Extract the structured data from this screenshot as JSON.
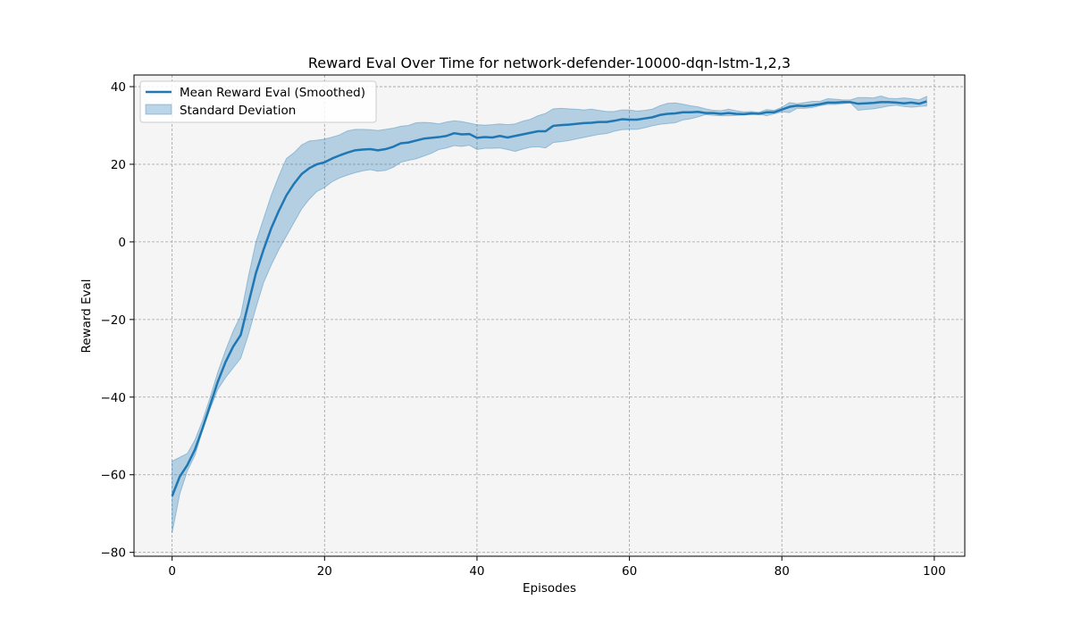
{
  "chart_data": {
    "type": "line",
    "title": "Reward Eval Over Time for network-defender-10000-dqn-lstm-1,2,3",
    "xlabel": "Episodes",
    "ylabel": "Reward Eval",
    "xlim": [
      -5,
      104
    ],
    "ylim": [
      -81,
      43
    ],
    "xticks": [
      0,
      20,
      40,
      60,
      80,
      100
    ],
    "yticks": [
      -80,
      -60,
      -40,
      -20,
      0,
      20,
      40
    ],
    "grid": true,
    "legend_position": "top-left",
    "colors": {
      "line": "#1f77b4",
      "band": "#1f77b4",
      "plot_background": "#f5f5f5",
      "grid": "#a0a0a0"
    },
    "x": [
      0,
      1,
      2,
      3,
      4,
      5,
      6,
      7,
      8,
      9,
      10,
      11,
      12,
      13,
      14,
      15,
      16,
      17,
      18,
      19,
      20,
      21,
      22,
      23,
      24,
      25,
      26,
      27,
      28,
      29,
      30,
      31,
      32,
      33,
      34,
      35,
      36,
      37,
      38,
      39,
      40,
      41,
      42,
      43,
      44,
      45,
      46,
      47,
      48,
      49,
      50,
      51,
      52,
      53,
      54,
      55,
      56,
      57,
      58,
      59,
      60,
      61,
      62,
      63,
      64,
      65,
      66,
      67,
      68,
      69,
      70,
      71,
      72,
      73,
      74,
      75,
      76,
      77,
      78,
      79,
      80,
      81,
      82,
      83,
      84,
      85,
      86,
      87,
      88,
      89,
      90,
      91,
      92,
      93,
      94,
      95,
      96,
      97,
      98,
      99
    ],
    "series": [
      {
        "name": "Mean Reward Eval (Smoothed)",
        "kind": "line",
        "values": [
          -65.5,
          -60.5,
          -57.5,
          -53.5,
          -48,
          -42,
          -36,
          -31,
          -27,
          -24,
          -16,
          -8,
          -2,
          3.5,
          8,
          12,
          15,
          17.5,
          19,
          20,
          20.5,
          21.5,
          22.3,
          23,
          23.6,
          23.8,
          23.9,
          23.6,
          23.9,
          24.5,
          25.4,
          25.6,
          26.1,
          26.6,
          26.8,
          27,
          27.3,
          28,
          27.7,
          27.8,
          26.8,
          27,
          26.9,
          27.3,
          26.9,
          27.3,
          27.7,
          28.1,
          28.5,
          28.5,
          29.9,
          30.1,
          30.2,
          30.4,
          30.6,
          30.7,
          30.9,
          30.9,
          31.2,
          31.6,
          31.5,
          31.5,
          31.8,
          32.1,
          32.7,
          33,
          33.1,
          33.4,
          33.4,
          33.5,
          33.2,
          33.2,
          33,
          33.2,
          33,
          32.9,
          33.1,
          33,
          33.4,
          33.4,
          34.1,
          34.8,
          35.1,
          35,
          35.2,
          35.5,
          35.9,
          35.9,
          36,
          36,
          35.6,
          35.7,
          35.8,
          36,
          36,
          35.9,
          35.7,
          35.9,
          35.6,
          36.2
        ]
      },
      {
        "name": "Standard Deviation",
        "kind": "band",
        "lower": [
          -75,
          -65,
          -59,
          -55,
          -48.5,
          -43,
          -38,
          -35,
          -32.5,
          -30,
          -24,
          -17,
          -10.5,
          -6,
          -2,
          1.5,
          5,
          8.5,
          11,
          13,
          14,
          15.5,
          16.5,
          17.2,
          17.8,
          18.3,
          18.6,
          18.2,
          18.4,
          19.2,
          20.5,
          21,
          21.4,
          22.1,
          22.8,
          23.8,
          24.2,
          24.8,
          24.6,
          24.9,
          23.8,
          24.1,
          24.1,
          24.2,
          23.8,
          23.3,
          23.9,
          24.4,
          24.5,
          24.2,
          25.6,
          25.8,
          26.1,
          26.5,
          26.9,
          27.3,
          27.7,
          27.9,
          28.5,
          28.9,
          29,
          29,
          29.4,
          29.9,
          30.3,
          30.5,
          30.7,
          31.4,
          31.7,
          32.2,
          32.8,
          32.6,
          32.5,
          32.5,
          32.6,
          32.7,
          32.8,
          32.9,
          32.5,
          33,
          33.5,
          33.3,
          34.4,
          34.4,
          34.6,
          35.1,
          35.4,
          35.4,
          35.6,
          35.8,
          33.9,
          34.1,
          34.3,
          34.6,
          35,
          35.2,
          34.9,
          34.7,
          34.9,
          35
        ],
        "upper": [
          -56.5,
          -55.5,
          -54.5,
          -51,
          -46,
          -40,
          -33.5,
          -28,
          -23,
          -19,
          -9,
          0,
          6,
          12,
          17,
          21.5,
          23,
          25,
          26,
          26.2,
          26.5,
          27,
          27.6,
          28.6,
          29,
          29,
          28.9,
          28.7,
          29,
          29.3,
          29.8,
          30,
          30.7,
          30.8,
          30.7,
          30.4,
          30.9,
          31.2,
          31,
          30.6,
          30.2,
          30.1,
          30.2,
          30.4,
          30.2,
          30.4,
          31.1,
          31.6,
          32.5,
          33.1,
          34.3,
          34.4,
          34.3,
          34.2,
          34,
          34.2,
          33.9,
          33.6,
          33.6,
          34,
          34,
          33.7,
          33.9,
          34.2,
          35.1,
          35.7,
          35.8,
          35.5,
          35.1,
          34.8,
          34.3,
          33.9,
          33.8,
          34.2,
          33.8,
          33.5,
          33.6,
          33.4,
          34.1,
          33.9,
          34.7,
          35.9,
          35.6,
          35.9,
          36.2,
          36.2,
          36.9,
          36.8,
          36.6,
          36.6,
          37.2,
          37.2,
          37.1,
          37.6,
          37,
          36.9,
          37.1,
          36.9,
          36.6,
          37.5
        ]
      }
    ],
    "legend": {
      "line_label": "Mean Reward Eval (Smoothed)",
      "band_label": "Standard Deviation"
    }
  }
}
